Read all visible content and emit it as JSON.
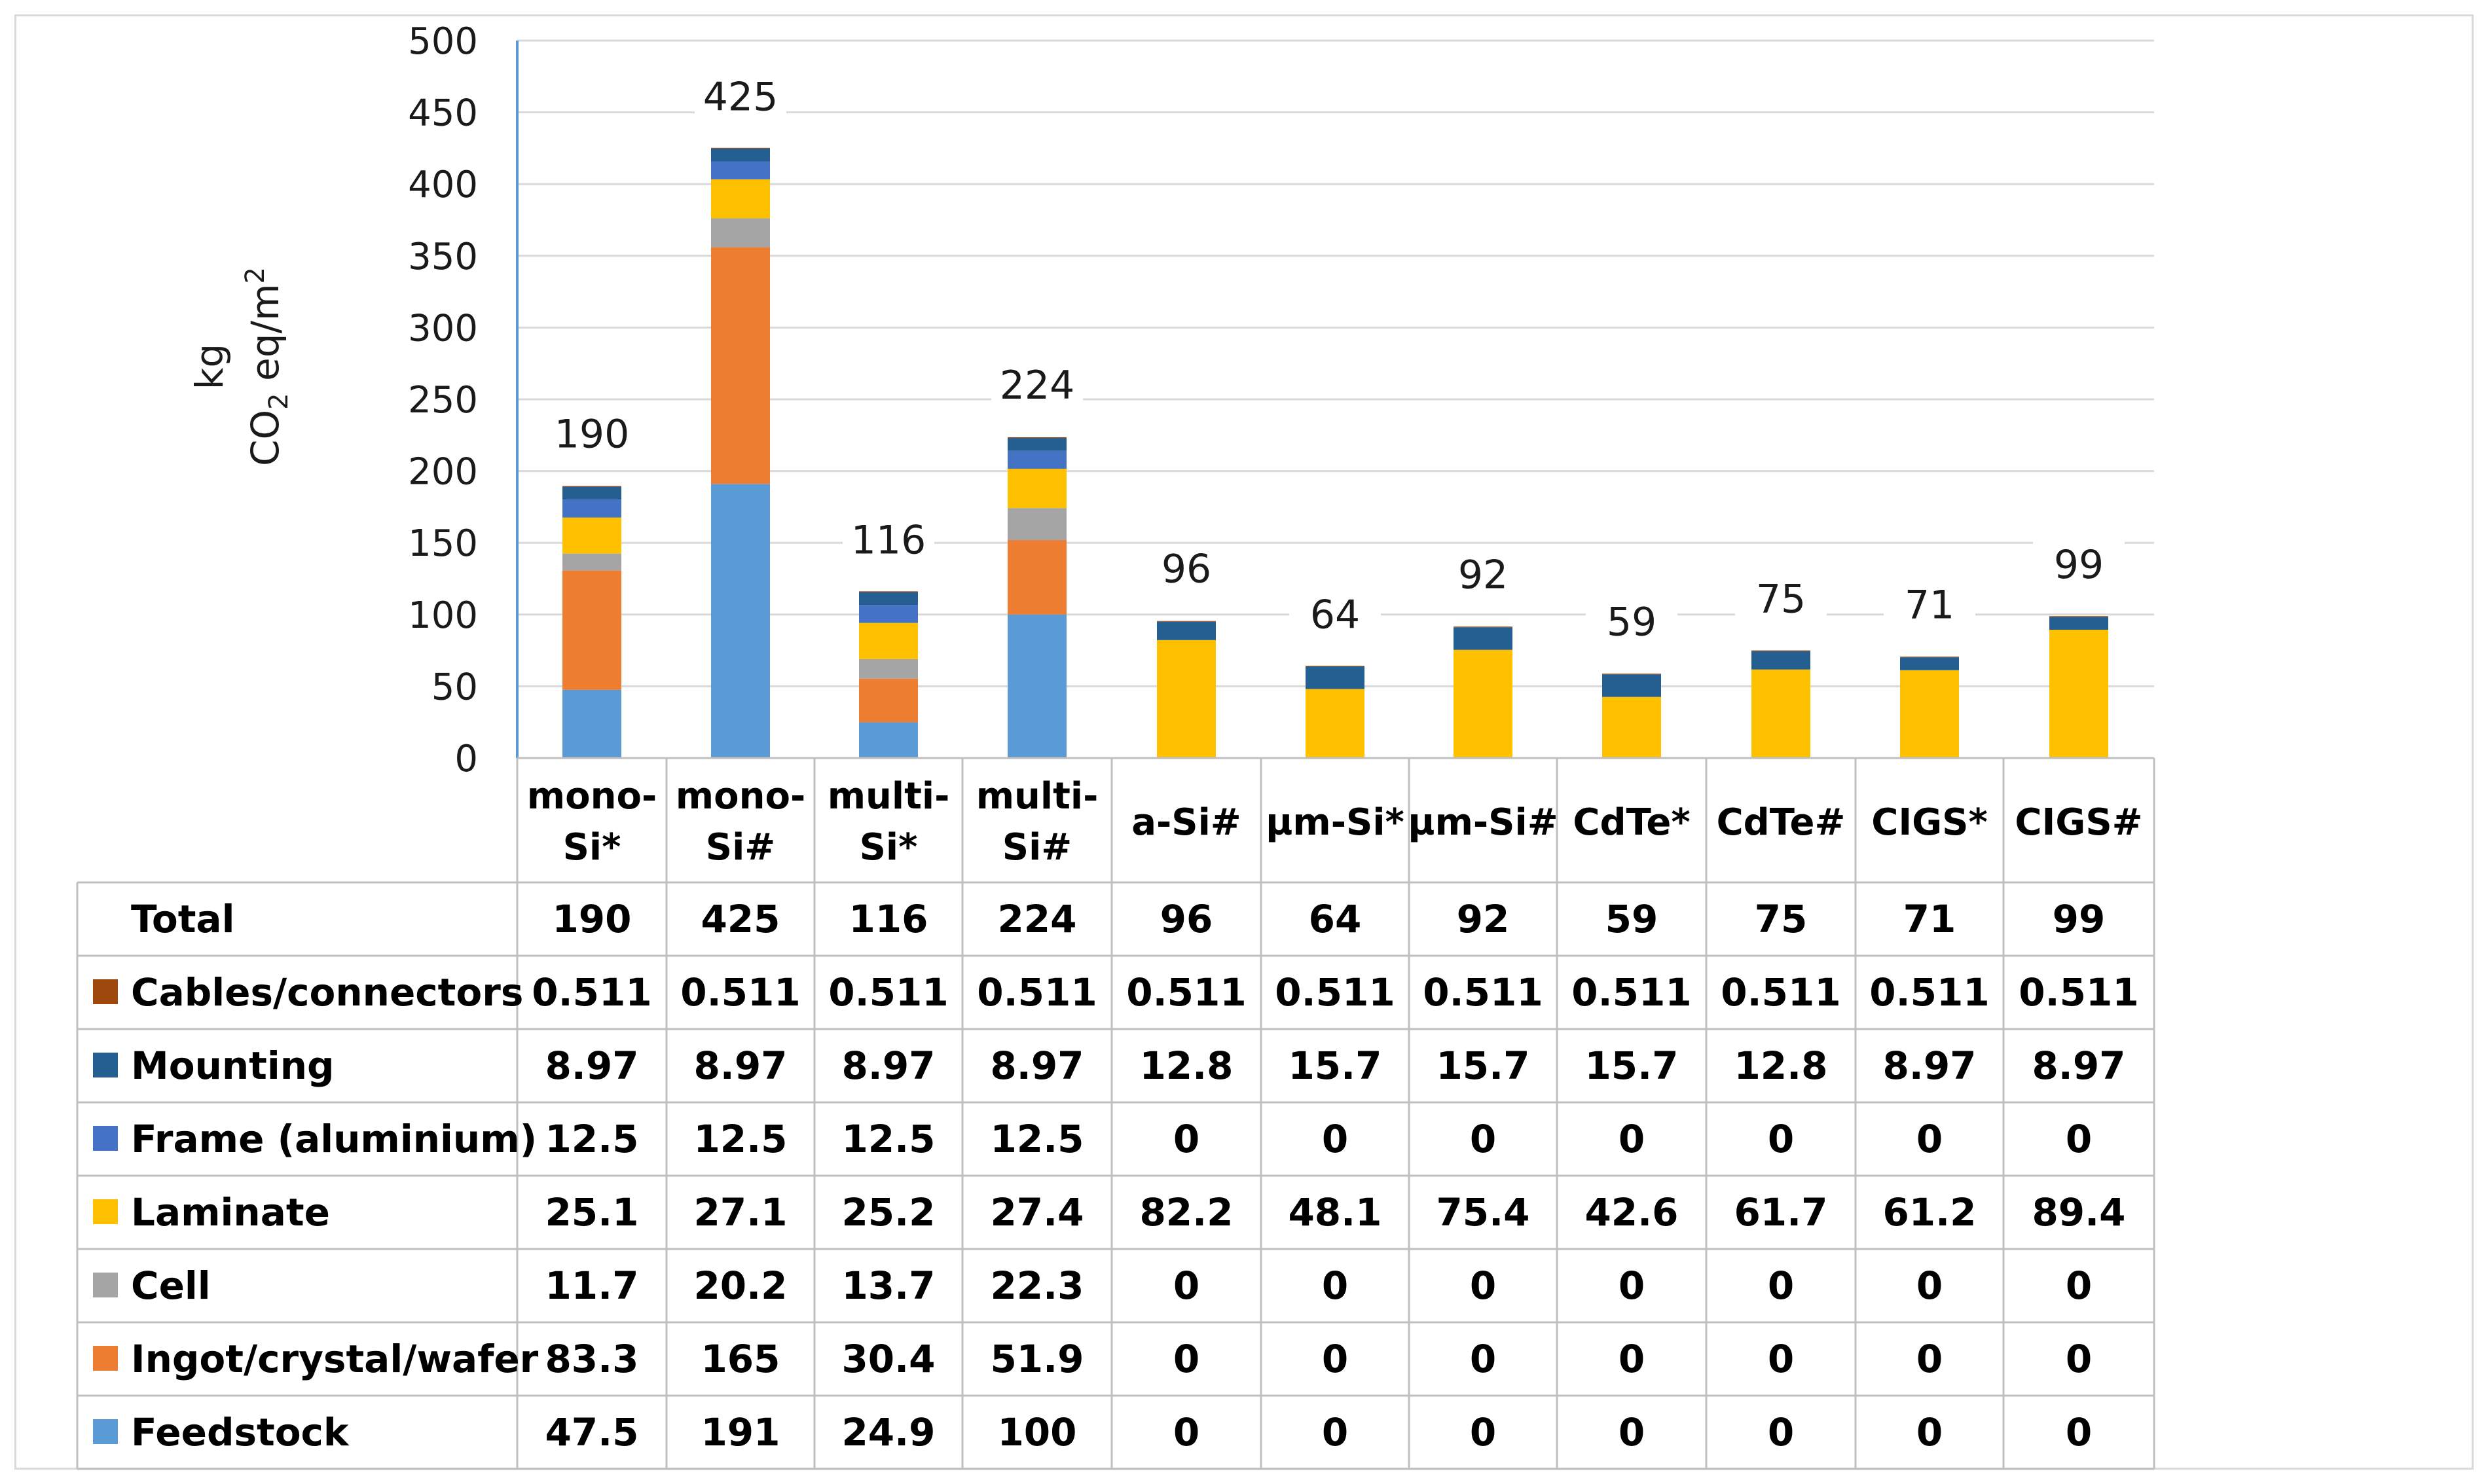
{
  "chart_data": {
    "type": "bar",
    "stacked": true,
    "ylabel_line1": "kg",
    "ylabel_line2_prefix": "CO",
    "ylabel_line2_sub": "2",
    "ylabel_line2_mid": " eq/m",
    "ylabel_line2_sup": "2",
    "ylim": [
      0,
      500
    ],
    "yticks": [
      0,
      50,
      100,
      150,
      200,
      250,
      300,
      350,
      400,
      450,
      500
    ],
    "grid": true,
    "categories": [
      [
        "mono-",
        "Si*"
      ],
      [
        "mono-",
        "Si#"
      ],
      [
        "multi-",
        "Si*"
      ],
      [
        "multi-",
        "Si#"
      ],
      [
        "a-Si#"
      ],
      [
        "µm-Si*"
      ],
      [
        "µm-Si#"
      ],
      [
        "CdTe*"
      ],
      [
        "CdTe#"
      ],
      [
        "CIGS*"
      ],
      [
        "CIGS#"
      ]
    ],
    "totals_label": "Total",
    "totals": [
      190,
      425,
      116,
      224,
      96,
      64,
      92,
      59,
      75,
      71,
      99
    ],
    "series": [
      {
        "name": "Feedstock",
        "color": "#5b9bd5",
        "values": [
          47.5,
          191,
          24.9,
          100,
          0,
          0,
          0,
          0,
          0,
          0,
          0
        ],
        "labels": [
          "47.5",
          "191",
          "24.9",
          "100",
          "0",
          "0",
          "0",
          "0",
          "0",
          "0",
          "0"
        ]
      },
      {
        "name": "Ingot/crystal/wafer",
        "color": "#ed7d31",
        "values": [
          83.3,
          165,
          30.4,
          51.9,
          0,
          0,
          0,
          0,
          0,
          0,
          0
        ],
        "labels": [
          "83.3",
          "165",
          "30.4",
          "51.9",
          "0",
          "0",
          "0",
          "0",
          "0",
          "0",
          "0"
        ]
      },
      {
        "name": "Cell",
        "color": "#a5a5a5",
        "values": [
          11.7,
          20.2,
          13.7,
          22.3,
          0,
          0,
          0,
          0,
          0,
          0,
          0
        ],
        "labels": [
          "11.7",
          "20.2",
          "13.7",
          "22.3",
          "0",
          "0",
          "0",
          "0",
          "0",
          "0",
          "0"
        ]
      },
      {
        "name": "Laminate",
        "color": "#ffc000",
        "values": [
          25.1,
          27.1,
          25.2,
          27.4,
          82.2,
          48.1,
          75.4,
          42.6,
          61.7,
          61.2,
          89.4
        ],
        "labels": [
          "25.1",
          "27.1",
          "25.2",
          "27.4",
          "82.2",
          "48.1",
          "75.4",
          "42.6",
          "61.7",
          "61.2",
          "89.4"
        ]
      },
      {
        "name": "Frame (aluminium)",
        "color": "#4472c4",
        "values": [
          12.5,
          12.5,
          12.5,
          12.5,
          0,
          0,
          0,
          0,
          0,
          0,
          0
        ],
        "labels": [
          "12.5",
          "12.5",
          "12.5",
          "12.5",
          "0",
          "0",
          "0",
          "0",
          "0",
          "0",
          "0"
        ]
      },
      {
        "name": "Mounting",
        "color": "#255e91",
        "values": [
          8.97,
          8.97,
          8.97,
          8.97,
          12.8,
          15.7,
          15.7,
          15.7,
          12.8,
          8.97,
          8.97
        ],
        "labels": [
          "8.97",
          "8.97",
          "8.97",
          "8.97",
          "12.8",
          "15.7",
          "15.7",
          "15.7",
          "12.8",
          "8.97",
          "8.97"
        ]
      },
      {
        "name": "Cables/connectors",
        "color": "#9e480e",
        "values": [
          0.511,
          0.511,
          0.511,
          0.511,
          0.511,
          0.511,
          0.511,
          0.511,
          0.511,
          0.511,
          0.511
        ],
        "labels": [
          "0.511",
          "0.511",
          "0.511",
          "0.511",
          "0.511",
          "0.511",
          "0.511",
          "0.511",
          "0.511",
          "0.511",
          "0.511"
        ]
      }
    ]
  }
}
